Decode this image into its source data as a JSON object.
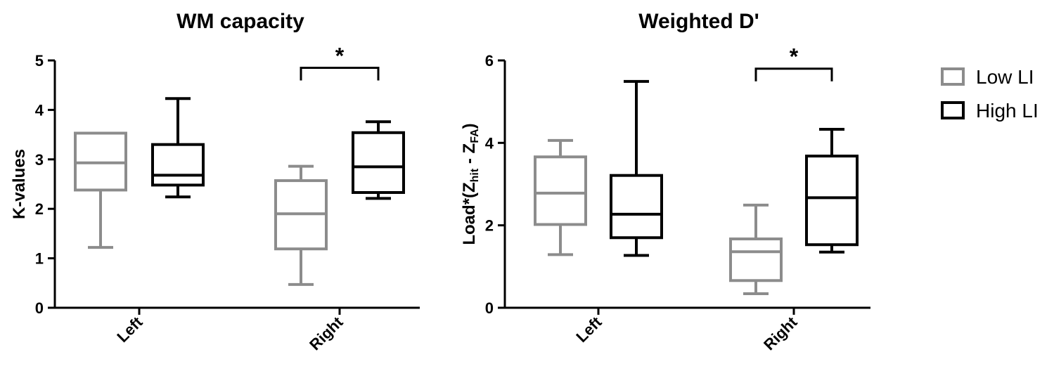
{
  "chart_data": [
    {
      "type": "box",
      "title": "WM capacity",
      "ylabel": "K-values",
      "ylim": [
        0,
        5
      ],
      "yticks": [
        "0",
        "1",
        "2",
        "3",
        "4",
        "5"
      ],
      "categories": [
        "Left",
        "Right"
      ],
      "series": [
        {
          "name": "Low LI",
          "color": "#8c8c8c",
          "boxes": [
            {
              "min": 1.22,
              "q1": 2.38,
              "median": 2.93,
              "q3": 3.53,
              "max": 3.53
            },
            {
              "min": 0.47,
              "q1": 1.19,
              "median": 1.9,
              "q3": 2.57,
              "max": 2.86
            }
          ]
        },
        {
          "name": "High LI",
          "color": "#000000",
          "boxes": [
            {
              "min": 2.24,
              "q1": 2.48,
              "median": 2.68,
              "q3": 3.3,
              "max": 4.23
            },
            {
              "min": 2.21,
              "q1": 2.33,
              "median": 2.85,
              "q3": 3.54,
              "max": 3.76
            }
          ]
        }
      ],
      "significance": [
        {
          "category": "Right",
          "label": "*",
          "y": 4.85
        }
      ]
    },
    {
      "type": "box",
      "title": "Weighted D'",
      "ylabel_main": "Load*(Z",
      "ylabel_sub1": "hit",
      "ylabel_mid": " - Z",
      "ylabel_sub2": "FA",
      "ylabel_end": ")",
      "ylim": [
        0,
        6
      ],
      "yticks": [
        "0",
        "2",
        "4",
        "6"
      ],
      "categories": [
        "Left",
        "Right"
      ],
      "series": [
        {
          "name": "Low LI",
          "color": "#8c8c8c",
          "boxes": [
            {
              "min": 1.29,
              "q1": 2.02,
              "median": 2.78,
              "q3": 3.66,
              "max": 4.06
            },
            {
              "min": 0.34,
              "q1": 0.66,
              "median": 1.36,
              "q3": 1.67,
              "max": 2.49
            }
          ]
        },
        {
          "name": "High LI",
          "color": "#000000",
          "boxes": [
            {
              "min": 1.27,
              "q1": 1.7,
              "median": 2.27,
              "q3": 3.21,
              "max": 5.49
            },
            {
              "min": 1.35,
              "q1": 1.53,
              "median": 2.67,
              "q3": 3.68,
              "max": 4.33
            }
          ]
        }
      ],
      "significance": [
        {
          "category": "Right",
          "label": "*",
          "y": 5.8
        }
      ]
    }
  ],
  "legend": {
    "items": [
      {
        "label": "Low LI",
        "color": "#8c8c8c"
      },
      {
        "label": "High LI",
        "color": "#000000"
      }
    ]
  }
}
